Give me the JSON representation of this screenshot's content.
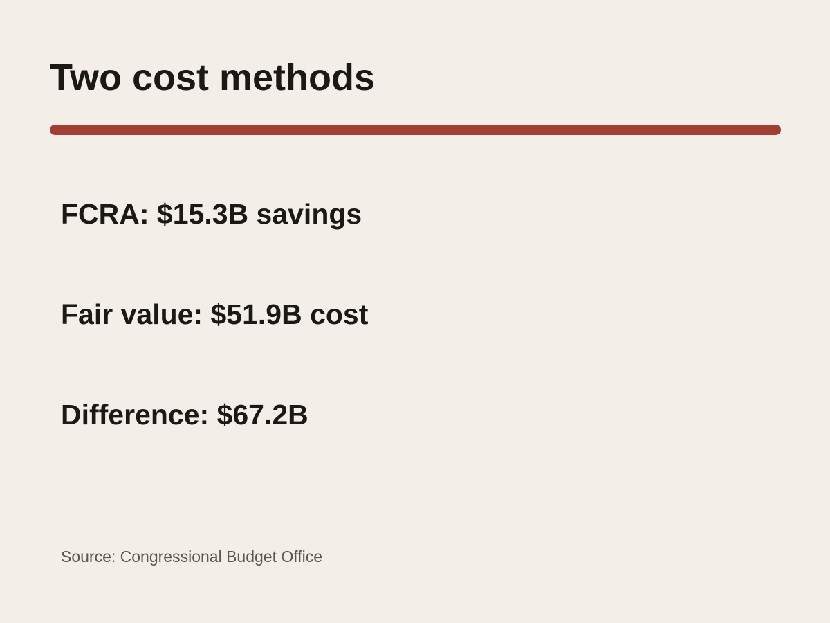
{
  "title": "Two cost methods",
  "colors": {
    "background": "#f3eee8",
    "accent_rule": "#a33e32",
    "text": "#1b1915",
    "source_text": "#5b5650"
  },
  "points": [
    "FCRA: $15.3B savings",
    "Fair value: $51.9B cost",
    "Difference: $67.2B"
  ],
  "source": "Source: Congressional Budget Office"
}
